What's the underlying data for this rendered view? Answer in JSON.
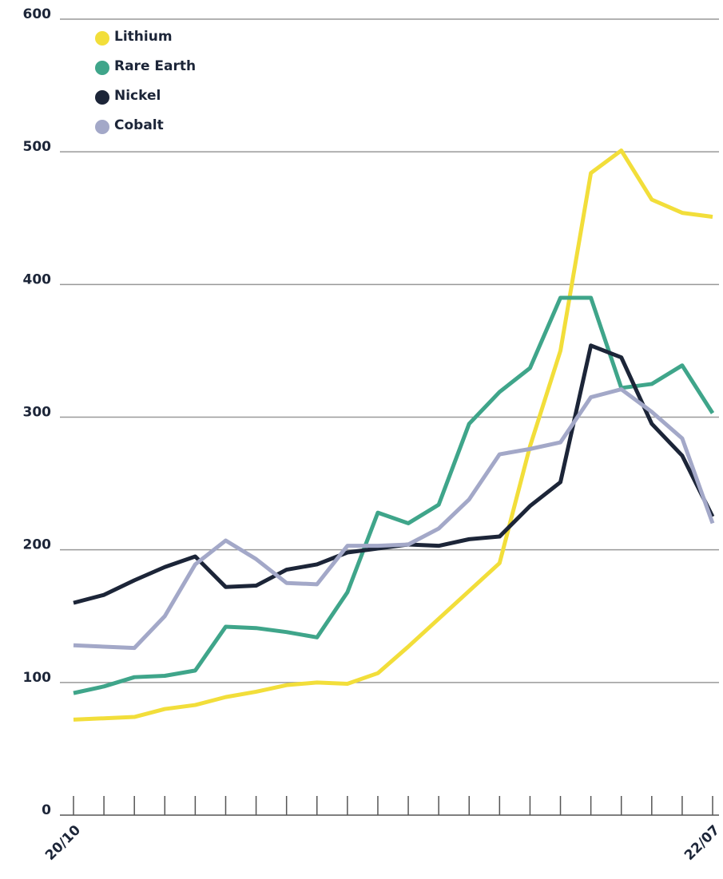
{
  "chart_data": {
    "type": "line",
    "categories": [
      "20/10",
      null,
      null,
      null,
      null,
      null,
      null,
      null,
      null,
      null,
      null,
      null,
      null,
      null,
      null,
      null,
      null,
      null,
      null,
      null,
      null,
      "22/07"
    ],
    "series": [
      {
        "name": "Lithium",
        "color": "#f2de3a",
        "values": [
          72,
          73,
          74,
          80,
          83,
          89,
          93,
          98,
          100,
          99,
          107,
          127,
          148,
          169,
          190,
          278,
          350,
          484,
          501,
          464,
          454,
          451
        ]
      },
      {
        "name": "Rare Earth",
        "color": "#3fa58a",
        "values": [
          92,
          97,
          104,
          105,
          109,
          142,
          141,
          138,
          134,
          168,
          228,
          220,
          234,
          295,
          319,
          337,
          390,
          390,
          322,
          325,
          339,
          303
        ]
      },
      {
        "name": "Nickel",
        "color": "#1c2538",
        "values": [
          160,
          166,
          177,
          187,
          195,
          172,
          173,
          185,
          189,
          198,
          201,
          204,
          203,
          208,
          210,
          233,
          251,
          354,
          345,
          295,
          271,
          225
        ]
      },
      {
        "name": "Cobalt",
        "color": "#a3a8c8",
        "values": [
          128,
          127,
          126,
          150,
          189,
          207,
          193,
          175,
          174,
          203,
          203,
          204,
          216,
          238,
          272,
          276,
          281,
          315,
          321,
          304,
          284,
          220
        ]
      }
    ],
    "ylim": [
      0,
      600
    ],
    "yticks": [
      0,
      100,
      200,
      300,
      400,
      500,
      600
    ],
    "grid": true,
    "legend": "top-left"
  }
}
